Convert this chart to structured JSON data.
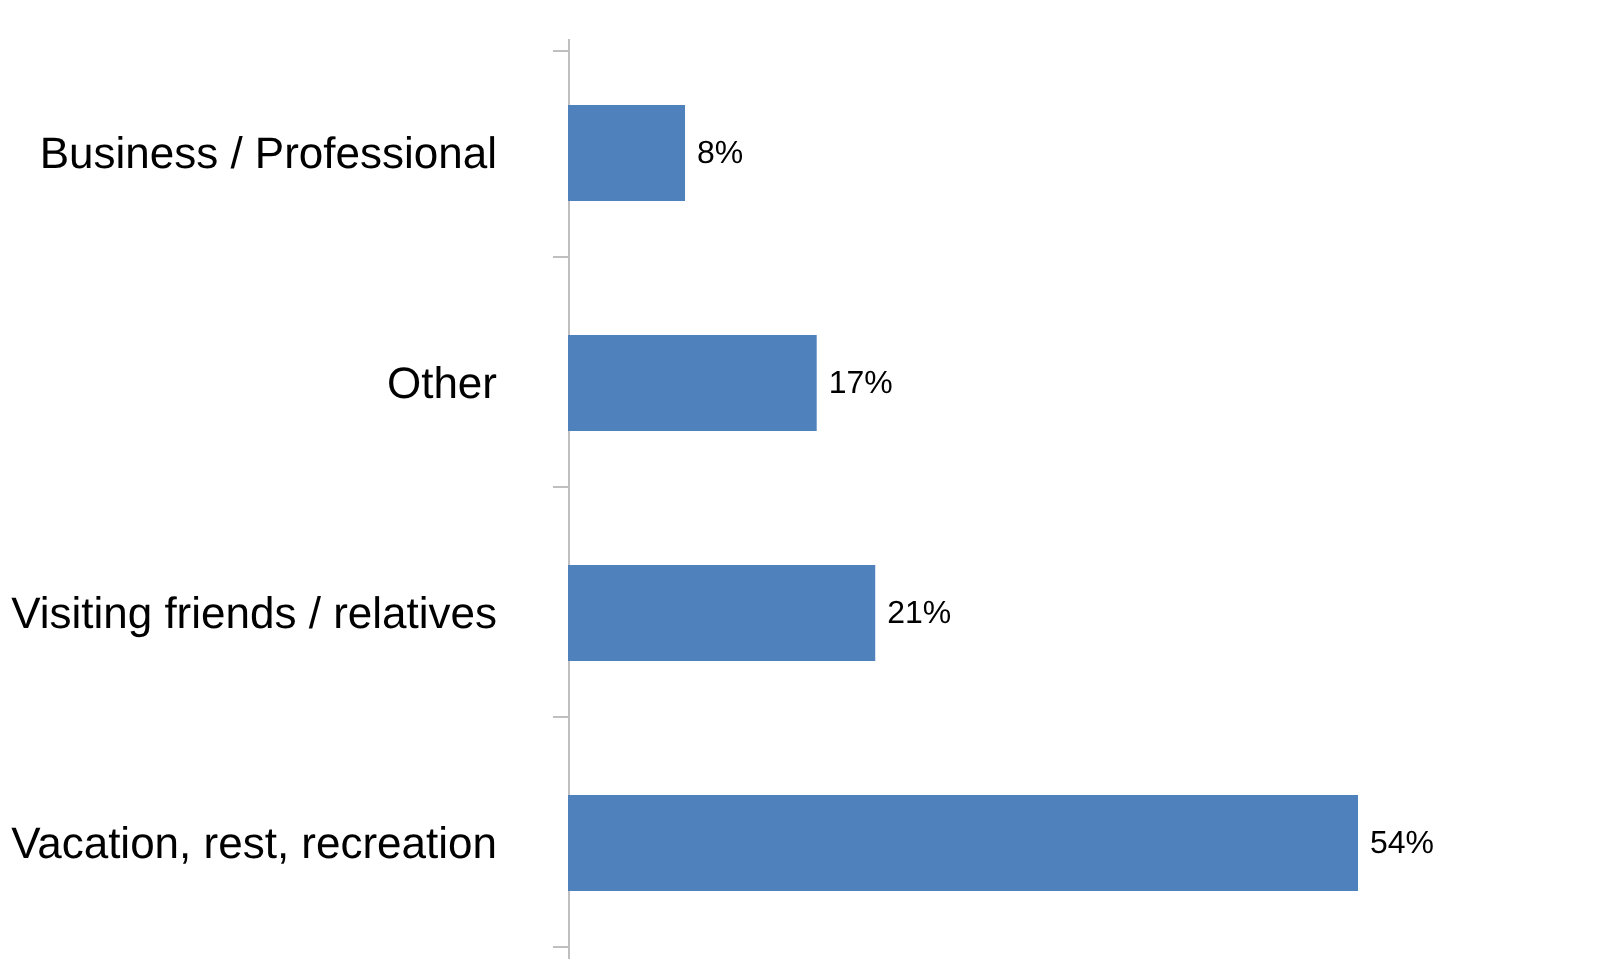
{
  "chart_data": {
    "type": "bar",
    "orientation": "horizontal",
    "categories": [
      "Business / Professional",
      "Other",
      "Visiting friends / relatives",
      "Vacation, rest, recreation"
    ],
    "values": [
      8,
      17,
      21,
      54
    ],
    "value_labels": [
      "8%",
      "17%",
      "21%",
      "54%"
    ],
    "color": "#4f81bd",
    "grid": false
  }
}
